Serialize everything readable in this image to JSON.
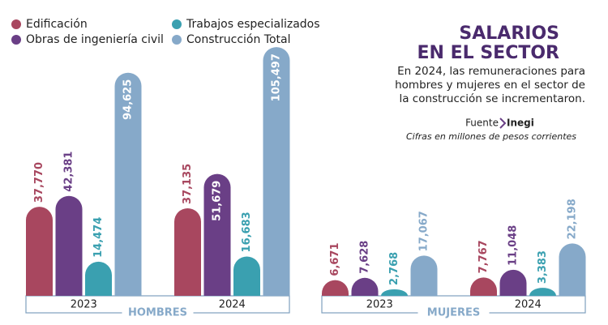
{
  "chart_data": {
    "type": "bar",
    "title": [
      "SALARIOS",
      "EN EL SECTOR"
    ],
    "subtitle": [
      "En 2024, las remuneraciones para",
      "hombres y mujeres en el sector de",
      "la construcción se incrementaron."
    ],
    "source_label": "Fuente",
    "source": "Inegi",
    "note": "Cifras en millones de pesos corrientes",
    "groups": [
      "HOMBRES",
      "MUJERES"
    ],
    "categories": [
      "2023",
      "2024",
      "2023",
      "2024"
    ],
    "ylim": [
      0,
      110000
    ],
    "series": [
      {
        "name": "Edificación",
        "color": "#a8475f",
        "values": [
          37770,
          37135,
          6671,
          7767
        ],
        "value_labels": [
          "37,770",
          "37,135",
          "6,671",
          "7,767"
        ]
      },
      {
        "name": "Obras de ingeniería civil",
        "color": "#6a3f86",
        "values": [
          42381,
          51679,
          7628,
          11048
        ],
        "value_labels": [
          "42,381",
          "51,679",
          "7,628",
          "11,048"
        ]
      },
      {
        "name": "Trabajos especializados",
        "color": "#3aa0b0",
        "values": [
          14474,
          16683,
          2768,
          3383
        ],
        "value_labels": [
          "14,474",
          "16,683",
          "2,768",
          "3,383"
        ]
      },
      {
        "name": "Construcción Total",
        "color": "#86a9c9",
        "values": [
          94625,
          105497,
          17067,
          22198
        ],
        "value_labels": [
          "94,625",
          "105,497",
          "17,067",
          "22,198"
        ]
      }
    ]
  }
}
